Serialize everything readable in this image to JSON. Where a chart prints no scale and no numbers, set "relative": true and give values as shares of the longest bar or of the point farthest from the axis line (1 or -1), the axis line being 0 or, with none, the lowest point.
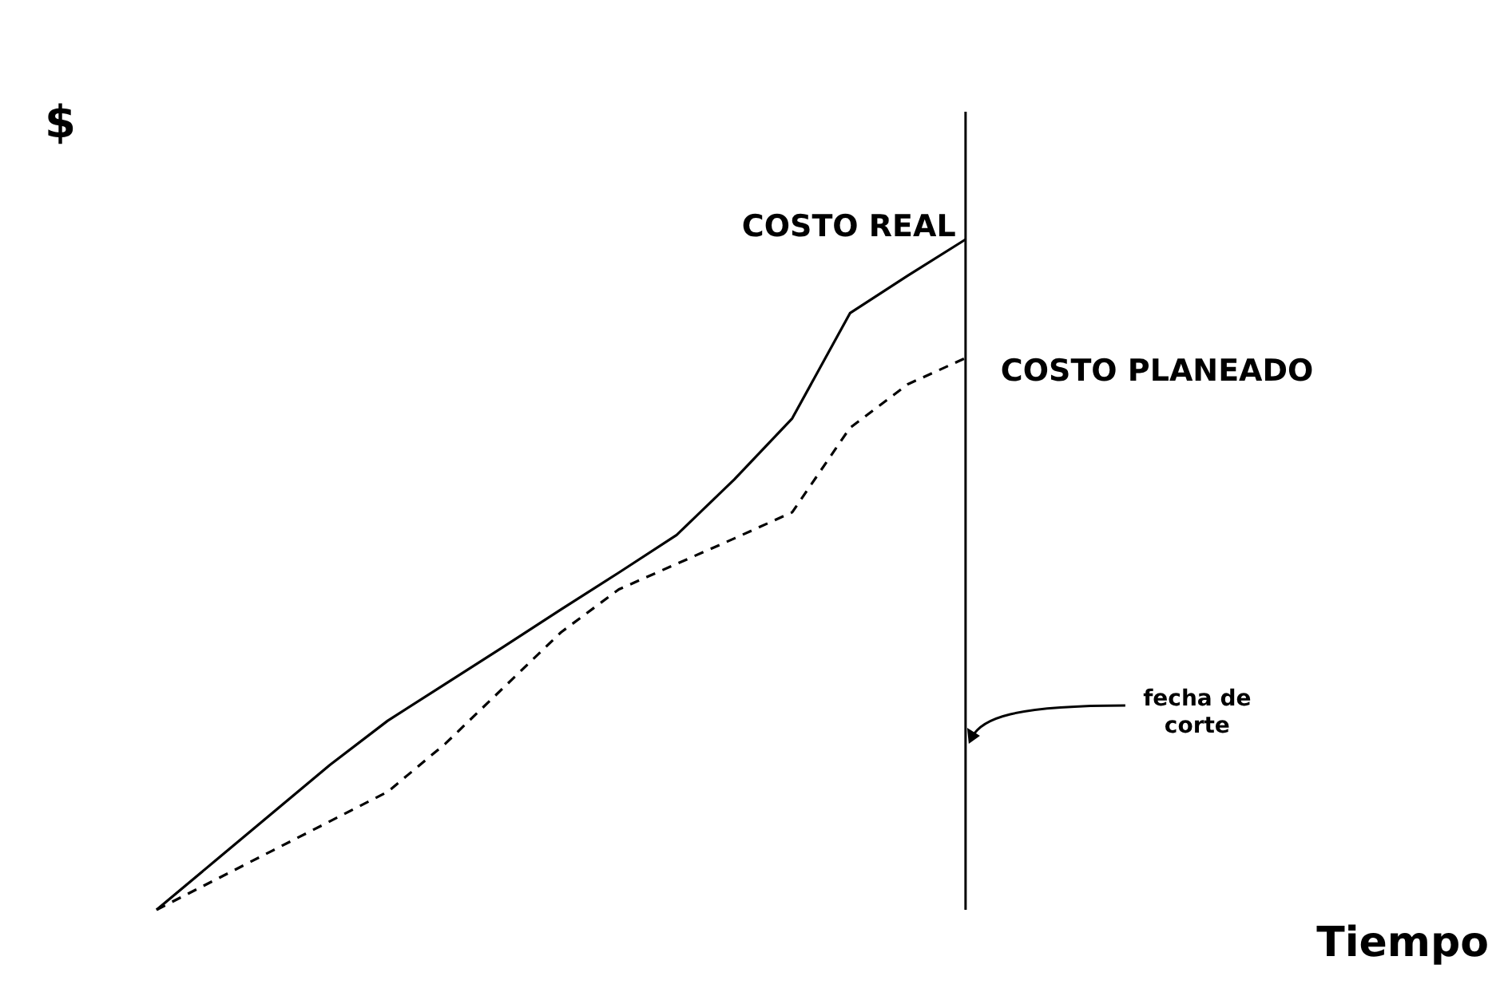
{
  "chart_data": {
    "type": "line",
    "relative": true,
    "xlabel": "Tiempo",
    "ylabel": "$",
    "marker": "none",
    "categories": [
      null,
      null,
      null,
      null,
      null,
      null,
      null,
      null,
      null,
      null,
      null,
      null,
      null,
      null,
      null,
      null,
      null,
      null,
      null,
      null,
      null,
      null,
      null,
      null
    ],
    "series": [
      {
        "name": "COSTO REAL",
        "color": "#000000",
        "line_style": "solid",
        "values": [
          0,
          0.072,
          0.144,
          0.216,
          0.282,
          0.337,
          0.392,
          0.448,
          0.503,
          0.559,
          0.642,
          0.733,
          0.89,
          0.946,
          1,
          null,
          null,
          null,
          null,
          null,
          null,
          null,
          null,
          null
        ]
      },
      {
        "name": "COSTO PLANEADO",
        "color": "#000000",
        "line_style": "dashed",
        "values": [
          0,
          0.044,
          0.088,
          0.132,
          0.176,
          0.248,
          0.331,
          0.414,
          0.478,
          0.516,
          0.554,
          0.593,
          0.719,
          0.784,
          0.823,
          null,
          null,
          null,
          null,
          null,
          null,
          null,
          null,
          null
        ]
      }
    ],
    "annotations": [
      "fecha de corte"
    ]
  }
}
